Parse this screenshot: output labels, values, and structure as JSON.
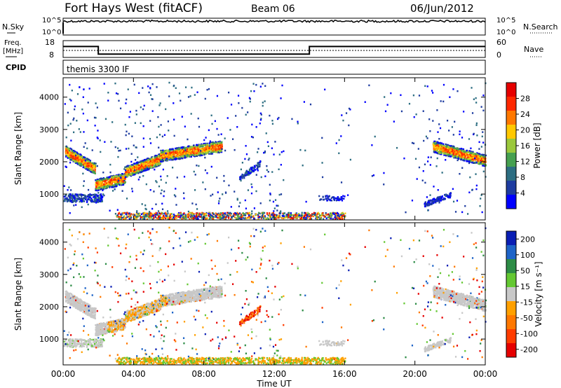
{
  "header": {
    "site": "Fort Hays West (fitACF)",
    "beam": "Beam 06",
    "date": "06/Jun/2012"
  },
  "noise_panel": {
    "left_label": "N.Sky",
    "right_label": "N.Search",
    "left_ticks": [
      "10^5",
      "10^0"
    ],
    "right_ticks": [
      "10^5",
      "10^0"
    ]
  },
  "freq_panel": {
    "left_label_1": "Freq.",
    "left_label_2": "[MHz]",
    "right_label": "Nave",
    "left_ticks": [
      "18",
      "8"
    ],
    "right_ticks": [
      "60",
      "0"
    ]
  },
  "cpid": {
    "label": "CPID",
    "value": "themis 3300 IF"
  },
  "colors": {
    "power_scale": [
      "#0000ff",
      "#1e3ca0",
      "#2d6e82",
      "#46a050",
      "#9bc83c",
      "#ffc800",
      "#ff7800",
      "#ff2800",
      "#e60000"
    ],
    "velocity_scale": [
      "#0a1eb4",
      "#1e64c8",
      "#2d8c46",
      "#64c832",
      "#c8c8c8",
      "#ffa000",
      "#ff7800",
      "#ff3c00",
      "#e60000"
    ]
  },
  "chart_data": [
    {
      "type": "heatmap",
      "name_of_quantity": "Power",
      "ylabel": "Slant Range [km]",
      "yticks": [
        "1000",
        "2000",
        "3000",
        "4000"
      ],
      "ylim": [
        200,
        4600
      ],
      "xlim": [
        0,
        24
      ],
      "colorbar_label": "Power [dB]",
      "colorbar_ticks": [
        "4",
        "8",
        "12",
        "16",
        "20",
        "24",
        "28"
      ],
      "colorbar_range": [
        0,
        32
      ],
      "features": [
        {
          "t0": 0.1,
          "t1": 1.8,
          "r0": 2350,
          "r1": 1800
        },
        {
          "t0": 1.8,
          "t1": 3.5,
          "r0": 1300,
          "r1": 1500
        },
        {
          "t0": 3.5,
          "t1": 5.5,
          "r0": 1700,
          "r1": 2100
        },
        {
          "t0": 5.5,
          "t1": 9.0,
          "r0": 2200,
          "r1": 2500
        },
        {
          "t0": 21.0,
          "t1": 24.0,
          "r0": 2500,
          "r1": 2050
        }
      ]
    },
    {
      "type": "heatmap",
      "name_of_quantity": "Velocity",
      "ylabel": "Slant Range [km]",
      "yticks": [
        "1000",
        "2000",
        "3000",
        "4000"
      ],
      "ylim": [
        200,
        4600
      ],
      "xlim": [
        0,
        24
      ],
      "xticks": [
        "00:00",
        "04:00",
        "08:00",
        "12:00",
        "16:00",
        "20:00",
        "00:00"
      ],
      "xlabel": "Time UT",
      "colorbar_label": "Velocity [m s⁻¹]",
      "colorbar_ticks": [
        "200",
        "100",
        "50",
        "15",
        "-15",
        "-50",
        "-100",
        "-200"
      ]
    }
  ],
  "series": {
    "freq_mhz": [
      {
        "t0": 0.0,
        "t1": 2.0,
        "v": 14.5
      },
      {
        "t0": 2.0,
        "t1": 14.0,
        "v": 10.0
      },
      {
        "t0": 14.0,
        "t1": 24.0,
        "v": 14.5
      }
    ],
    "nave": 25,
    "noise_sky_level": 0.82
  }
}
